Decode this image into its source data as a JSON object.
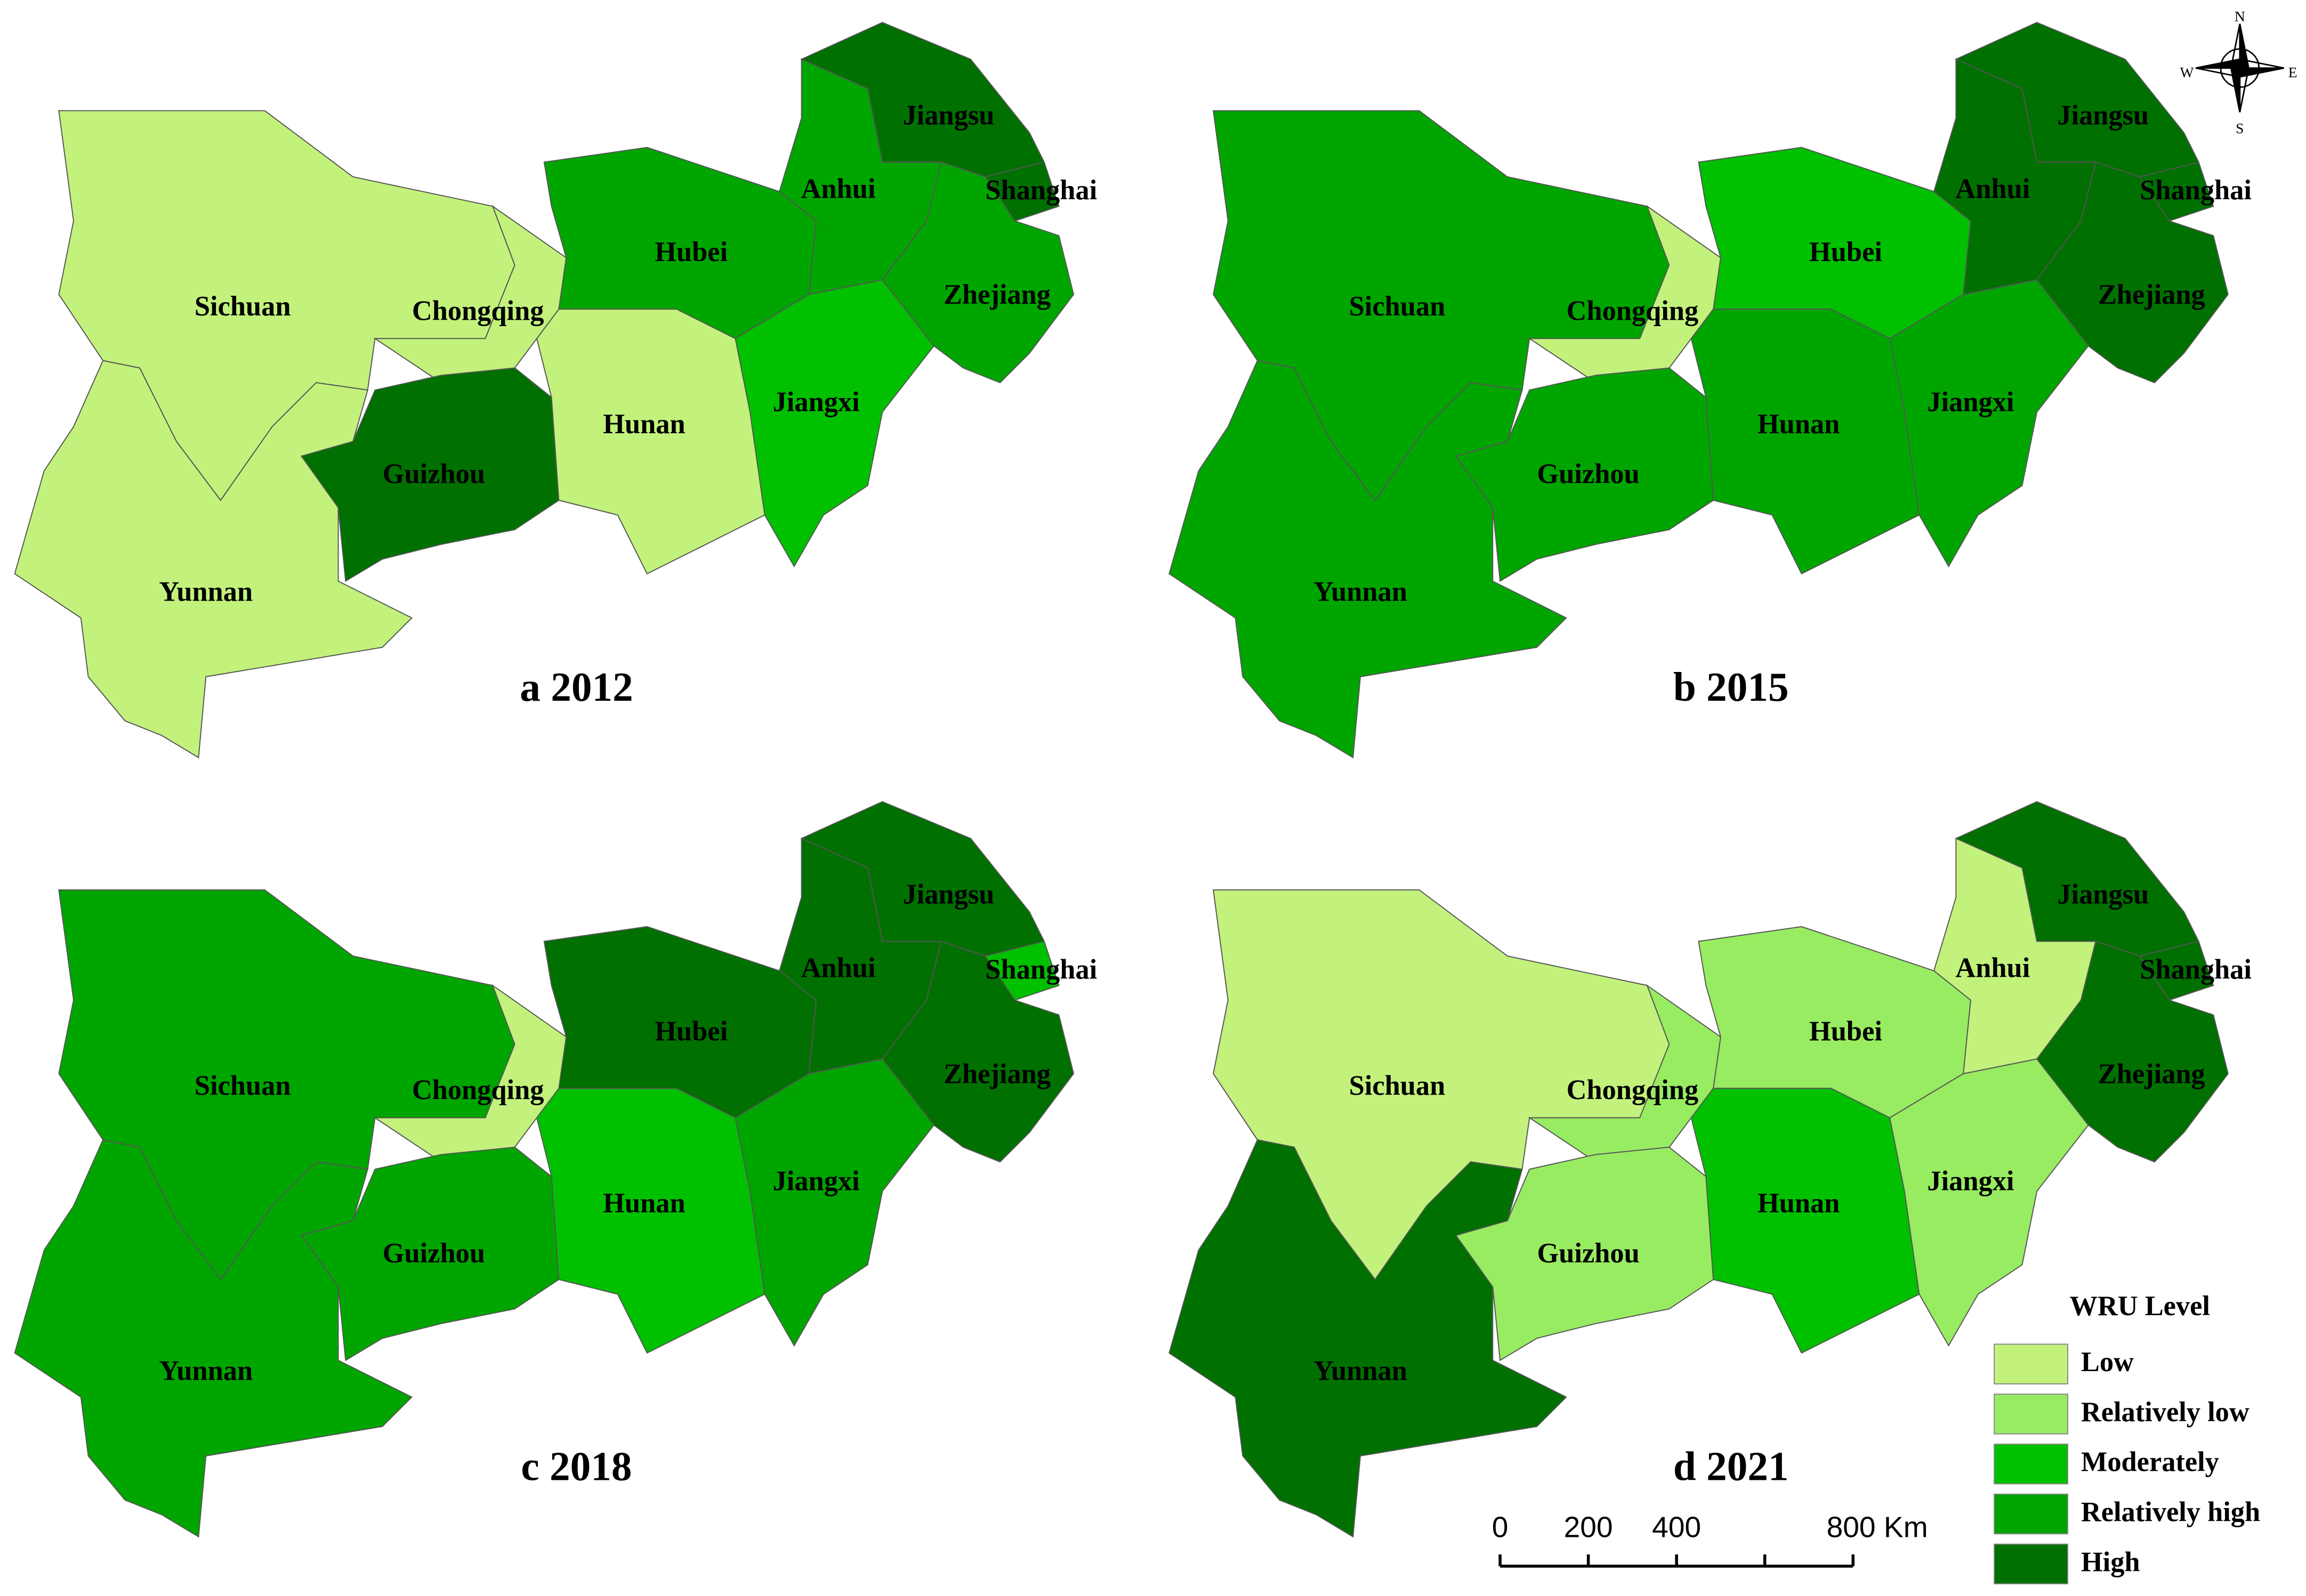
{
  "panels": [
    {
      "title": "a 2012",
      "regions": [
        {
          "name": "Sichuan",
          "level": "Low"
        },
        {
          "name": "Yunnan",
          "level": "Low"
        },
        {
          "name": "Chongqing",
          "level": "Low"
        },
        {
          "name": "Guizhou",
          "level": "High"
        },
        {
          "name": "Hubei",
          "level": "Relatively high"
        },
        {
          "name": "Hunan",
          "level": "Low"
        },
        {
          "name": "Jiangxi",
          "level": "Moderately"
        },
        {
          "name": "Anhui",
          "level": "Relatively high"
        },
        {
          "name": "Jiangsu",
          "level": "High"
        },
        {
          "name": "Shanghai",
          "level": "High"
        },
        {
          "name": "Zhejiang",
          "level": "Relatively high"
        }
      ]
    },
    {
      "title": "b 2015",
      "regions": [
        {
          "name": "Sichuan",
          "level": "Relatively high"
        },
        {
          "name": "Yunnan",
          "level": "Relatively high"
        },
        {
          "name": "Chongqing",
          "level": "Low"
        },
        {
          "name": "Guizhou",
          "level": "Relatively high"
        },
        {
          "name": "Hubei",
          "level": "Moderately"
        },
        {
          "name": "Hunan",
          "level": "Relatively high"
        },
        {
          "name": "Jiangxi",
          "level": "Relatively high"
        },
        {
          "name": "Anhui",
          "level": "High"
        },
        {
          "name": "Jiangsu",
          "level": "High"
        },
        {
          "name": "Shanghai",
          "level": "High"
        },
        {
          "name": "Zhejiang",
          "level": "High"
        }
      ]
    },
    {
      "title": "c 2018",
      "regions": [
        {
          "name": "Sichuan",
          "level": "Relatively high"
        },
        {
          "name": "Yunnan",
          "level": "Relatively high"
        },
        {
          "name": "Chongqing",
          "level": "Low"
        },
        {
          "name": "Guizhou",
          "level": "Relatively high"
        },
        {
          "name": "Hubei",
          "level": "High"
        },
        {
          "name": "Hunan",
          "level": "Moderately"
        },
        {
          "name": "Jiangxi",
          "level": "Relatively high"
        },
        {
          "name": "Anhui",
          "level": "High"
        },
        {
          "name": "Jiangsu",
          "level": "High"
        },
        {
          "name": "Shanghai",
          "level": "Moderately"
        },
        {
          "name": "Zhejiang",
          "level": "High"
        }
      ]
    },
    {
      "title": "d 2021",
      "regions": [
        {
          "name": "Sichuan",
          "level": "Low"
        },
        {
          "name": "Yunnan",
          "level": "High"
        },
        {
          "name": "Chongqing",
          "level": "Relatively low"
        },
        {
          "name": "Guizhou",
          "level": "Relatively low"
        },
        {
          "name": "Hubei",
          "level": "Relatively low"
        },
        {
          "name": "Hunan",
          "level": "Moderately"
        },
        {
          "name": "Jiangxi",
          "level": "Relatively low"
        },
        {
          "name": "Anhui",
          "level": "Low"
        },
        {
          "name": "Jiangsu",
          "level": "High"
        },
        {
          "name": "Shanghai",
          "level": "High"
        },
        {
          "name": "Zhejiang",
          "level": "High"
        }
      ]
    }
  ],
  "legend": {
    "title": "WRU Level",
    "items": [
      {
        "label": "Low",
        "color": "#c2f27c"
      },
      {
        "label": "Relatively low",
        "color": "#98ec62"
      },
      {
        "label": "Moderately",
        "color": "#00c000"
      },
      {
        "label": "Relatively high",
        "color": "#00a500"
      },
      {
        "label": "High",
        "color": "#007000"
      }
    ]
  },
  "scale_bar": {
    "labels": [
      "0",
      "200",
      "400",
      "800 Km"
    ]
  },
  "compass": {
    "n": "N",
    "e": "E",
    "s": "S",
    "w": "W"
  }
}
